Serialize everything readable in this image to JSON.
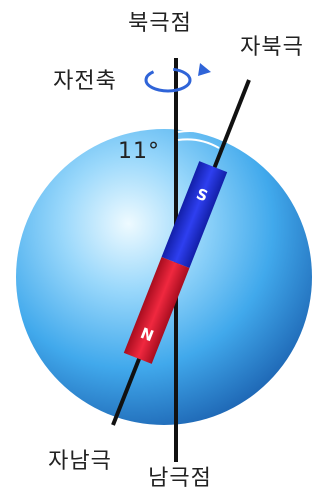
{
  "labels": {
    "north_pole": "북극점",
    "south_pole": "남극점",
    "rotation_axis": "자전축",
    "magnetic_north": "자북극",
    "magnetic_south": "자남극",
    "angle": "11°"
  },
  "magnet": {
    "top_letter": "S",
    "bottom_letter": "N"
  },
  "colors": {
    "globe_light": "#e8f7ff",
    "globe_mid": "#4fb6f0",
    "globe_dark": "#1a5fae",
    "magnet_blue": "#1f2fd6",
    "magnet_red": "#e0152e",
    "arrow": "#2f64d8",
    "line": "#111111"
  }
}
